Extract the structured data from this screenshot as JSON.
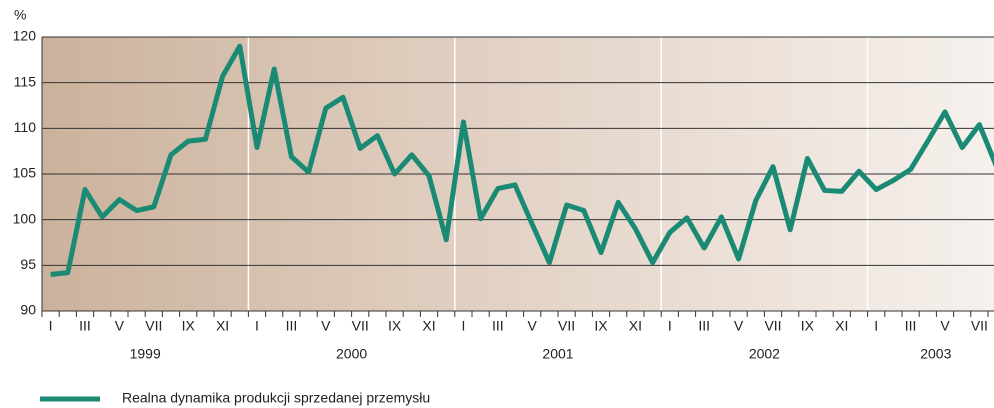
{
  "chart_data": {
    "type": "line",
    "y_unit": "%",
    "categories": [
      "I",
      null,
      "III",
      null,
      "V",
      null,
      "VII",
      null,
      "IX",
      null,
      "XI",
      null,
      "I",
      null,
      "III",
      null,
      "V",
      null,
      "VII",
      null,
      "IX",
      null,
      "XI",
      null,
      "I",
      null,
      "III",
      null,
      "V",
      null,
      "VII",
      null,
      "IX",
      null,
      "XI",
      null,
      "I",
      null,
      "III",
      null,
      "V",
      null,
      "VII",
      null,
      "IX",
      null,
      "XI",
      null,
      "I",
      null,
      "III",
      null,
      "V",
      null,
      "VII",
      null
    ],
    "years": [
      "1999",
      "2000",
      "2001",
      "2002",
      "2003"
    ],
    "series": [
      {
        "name": "Realna dynamika produkcji sprzedanej przemysłu",
        "color": "#1a8a74",
        "values": [
          94,
          94.2,
          103.3,
          100.3,
          102.2,
          101,
          101.4,
          107.1,
          108.6,
          108.8,
          115.7,
          119,
          107.9,
          116.5,
          106.9,
          105.2,
          112.2,
          113.4,
          107.8,
          109.2,
          105,
          107.1,
          104.8,
          97.8,
          110.7,
          100.1,
          103.4,
          103.8,
          99.5,
          95.3,
          101.6,
          101,
          96.4,
          101.9,
          99,
          95.3,
          98.6,
          100.2,
          96.9,
          100.3,
          95.7,
          102.1,
          105.8,
          98.9,
          106.7,
          103.2,
          103.1,
          105.3,
          103.3,
          104.3,
          105.5,
          108.6,
          111.8,
          107.9,
          110.4,
          105.8
        ]
      }
    ],
    "ylim": [
      90,
      120
    ],
    "yticks": [
      90,
      95,
      100,
      105,
      110,
      115,
      120
    ],
    "grid": true
  }
}
